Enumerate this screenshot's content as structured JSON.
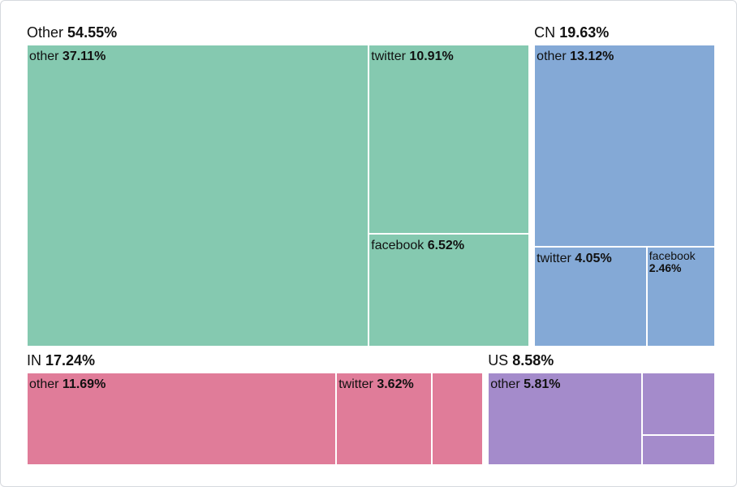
{
  "chart_data": {
    "type": "treemap",
    "groups": [
      {
        "name": "Other",
        "value": 54.55,
        "value_label": "54.55%",
        "color": "#85c9b0",
        "categories": [
          "other",
          "twitter",
          "facebook"
        ],
        "values": [
          37.11,
          10.91,
          6.52
        ],
        "value_labels": [
          "37.11%",
          "10.91%",
          "6.52%"
        ]
      },
      {
        "name": "CN",
        "value": 19.63,
        "value_label": "19.63%",
        "color": "#84a9d6",
        "categories": [
          "other",
          "twitter",
          "facebook"
        ],
        "values": [
          13.12,
          4.05,
          2.46
        ],
        "value_labels": [
          "13.12%",
          "4.05%",
          "2.46%"
        ]
      },
      {
        "name": "IN",
        "value": 17.24,
        "value_label": "17.24%",
        "color": "#e07c99",
        "categories": [
          "other",
          "twitter",
          null
        ],
        "values": [
          11.69,
          3.62,
          1.93
        ],
        "value_labels": [
          "11.69%",
          "3.62%",
          null
        ]
      },
      {
        "name": "US",
        "value": 8.58,
        "value_label": "8.58%",
        "color": "#a48bcb",
        "categories": [
          "other",
          null,
          null
        ],
        "values": [
          5.81,
          1.88,
          0.89
        ],
        "value_labels": [
          "5.81%",
          null,
          null
        ]
      }
    ]
  }
}
